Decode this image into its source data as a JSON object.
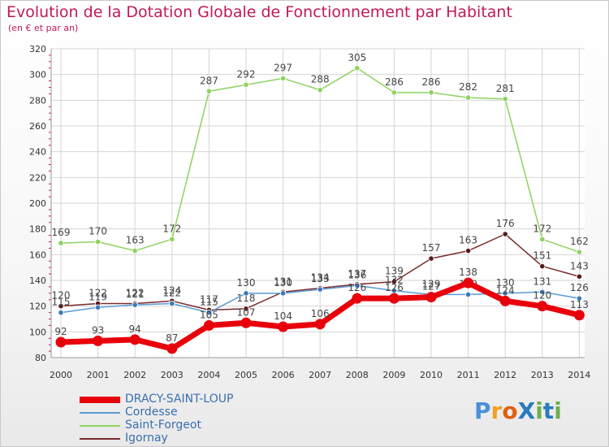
{
  "title": "Evolution de la Dotation Globale de Fonctionnement par Habitant",
  "subtitle": "(en € et par an)",
  "logo": {
    "text": "ProXiti",
    "letters": [
      "P",
      "r",
      "o",
      "X",
      "i",
      "t",
      "i"
    ],
    "colors": [
      "#4a90d9",
      "#f0a020",
      "#e06010",
      "#2a7abf",
      "#6ab04c",
      "#2a7abf",
      "#6ab04c"
    ]
  },
  "chart_data": {
    "type": "line",
    "x": [
      "2000",
      "2001",
      "2002",
      "2003",
      "2004",
      "2005",
      "2006",
      "2007",
      "2008",
      "2009",
      "2010",
      "2011",
      "2012",
      "2013",
      "2014"
    ],
    "ylim": [
      80,
      320
    ],
    "yticks": [
      80,
      100,
      120,
      140,
      160,
      180,
      200,
      220,
      240,
      260,
      280,
      300,
      320
    ],
    "grid": true,
    "legend_position": "bottom-left",
    "series": [
      {
        "name": "Saint-Forgeot",
        "color": "#8dd35f",
        "stroke": 1.5,
        "marker_fill": "#8dd35f",
        "values": [
          169,
          170,
          163,
          172,
          287,
          292,
          297,
          288,
          305,
          286,
          286,
          282,
          281,
          172,
          162
        ],
        "labels": [
          "169",
          "170",
          "163",
          "172",
          "287",
          "292",
          "297",
          "288",
          "305",
          "286",
          "286",
          "282",
          "281",
          "172",
          "162"
        ]
      },
      {
        "name": "Igornay",
        "color": "#7b2a2a",
        "stroke": 1.5,
        "marker_fill": "#5a1a1a",
        "values": [
          120,
          122,
          122,
          124,
          117,
          118,
          131,
          134,
          137,
          139,
          157,
          163,
          176,
          151,
          143
        ],
        "labels": [
          "120",
          "122",
          "122",
          "124",
          "117",
          "118",
          "131",
          "134",
          "137",
          "139",
          "157",
          "163",
          "176",
          "151",
          "143"
        ]
      },
      {
        "name": "Cordesse",
        "color": "#5a9bd5",
        "stroke": 1.5,
        "marker_fill": "#3a7abd",
        "values": [
          115,
          119,
          121,
          122,
          115,
          130,
          130,
          133,
          136,
          132,
          129,
          129,
          130,
          131,
          126
        ],
        "labels": [
          "115",
          "119",
          "121",
          "122",
          "115",
          "130",
          "130",
          "133",
          "136",
          "132",
          "129",
          "129",
          "130",
          "131",
          "126"
        ]
      },
      {
        "name": "DRACY-SAINT-LOUP",
        "color": "#e8000b",
        "stroke": 7,
        "marker_fill": "#e8000b",
        "values": [
          92,
          93,
          94,
          87,
          105,
          107,
          104,
          106,
          126,
          126,
          127,
          138,
          124,
          120,
          113
        ],
        "labels": [
          "92",
          "93",
          "94",
          "87",
          "105",
          "107",
          "104",
          "106",
          "126",
          "126",
          "127",
          "138",
          "124",
          "120",
          "113"
        ]
      }
    ]
  },
  "legend": [
    {
      "label": "DRACY-SAINT-LOUP",
      "color": "#e8000b",
      "thickness": 8
    },
    {
      "label": "Cordesse",
      "color": "#5a9bd5",
      "thickness": 2
    },
    {
      "label": "Saint-Forgeot",
      "color": "#8dd35f",
      "thickness": 2
    },
    {
      "label": "Igornay",
      "color": "#7b2a2a",
      "thickness": 2
    }
  ]
}
